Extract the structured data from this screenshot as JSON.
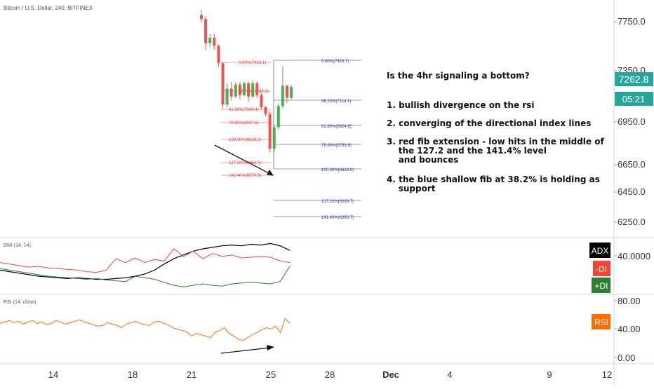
{
  "header": {
    "symbol": "Bitcoin / U.S. Dollar, 240, BITFINEX"
  },
  "price_axis": {
    "ticks": [
      "7750.0",
      "7350.0",
      "6950.0",
      "6650.0",
      "6450.0",
      "6250.0"
    ],
    "current_price": "7262.8",
    "countdown": "05:21",
    "accent_green": "#26a69a"
  },
  "indicators": {
    "dmi": {
      "title": "DMI (14, 14)",
      "axis_tick": "40.0000",
      "labels": [
        "ADX",
        "-DI",
        "+DI"
      ],
      "colors": [
        "#000000",
        "#f44336",
        "#2e7d32"
      ]
    },
    "rsi": {
      "title": "RSI (14, close)",
      "axis_ticks": [
        "80.00",
        "40.00",
        "0.00"
      ],
      "label": "RSI",
      "color": "#ff6d00"
    }
  },
  "time_axis": {
    "ticks": [
      "14",
      "18",
      "21",
      "25",
      "28",
      "Dec",
      "4",
      "9",
      "12"
    ]
  },
  "fib_red": [
    {
      "label": "0.00%(7419.1)"
    },
    {
      "label": "38.20%(7189.9)"
    },
    {
      "label": "61.80%(7048.4)"
    },
    {
      "label": "78.60%(6947.6)"
    },
    {
      "label": "100.00%(6819.2)"
    },
    {
      "label": "127.20%(6656.0)"
    },
    {
      "label": "141.40%(6570.8)"
    }
  ],
  "fib_blue": [
    {
      "label": "0.00%(7420.7)"
    },
    {
      "label": "38.20%(7114.1)"
    },
    {
      "label": "61.80%(6924.6)"
    },
    {
      "label": "78.60%(6789.8)"
    },
    {
      "label": "100.00%(6618.0)"
    },
    {
      "label": "127.20%(6399.7)"
    },
    {
      "label": "141.40%(6285.7)"
    }
  ],
  "annotation": {
    "title": "Is the 4hr signaling a bottom?",
    "points": [
      [
        "1. bullish divergence on the rsi"
      ],
      [
        "2. converging of the directional index lines"
      ],
      [
        "3. red fib extension - low hits in the middle of",
        "    the 127.2 and the 141.4% level",
        "    and bounces"
      ],
      [
        "4. the blue shallow fib at 38.2% is holding as",
        "    support"
      ]
    ]
  },
  "chart_data": {
    "type": "candlestick",
    "title": "Bitcoin / U.S. Dollar, 240, BITFINEX",
    "interval": "240",
    "y_axis_ticks": [
      7750.0,
      7350.0,
      6950.0,
      6650.0,
      6450.0,
      6250.0
    ],
    "x_axis_ticks": [
      "14",
      "18",
      "21",
      "25",
      "28",
      "Dec",
      "4",
      "9",
      "12"
    ],
    "last_price": 7262.8,
    "candles": [
      {
        "o": 7800,
        "h": 7840,
        "l": 7745,
        "c": 7770
      },
      {
        "o": 7770,
        "h": 7790,
        "l": 7540,
        "c": 7590
      },
      {
        "o": 7590,
        "h": 7660,
        "l": 7560,
        "c": 7630
      },
      {
        "o": 7630,
        "h": 7660,
        "l": 7540,
        "c": 7570
      },
      {
        "o": 7570,
        "h": 7580,
        "l": 7410,
        "c": 7440
      },
      {
        "o": 7440,
        "h": 7450,
        "l": 7100,
        "c": 7130
      },
      {
        "o": 7130,
        "h": 7290,
        "l": 7110,
        "c": 7250
      },
      {
        "o": 7250,
        "h": 7300,
        "l": 7160,
        "c": 7190
      },
      {
        "o": 7190,
        "h": 7300,
        "l": 7180,
        "c": 7280
      },
      {
        "o": 7280,
        "h": 7300,
        "l": 7170,
        "c": 7200
      },
      {
        "o": 7200,
        "h": 7300,
        "l": 7190,
        "c": 7290
      },
      {
        "o": 7290,
        "h": 7300,
        "l": 7150,
        "c": 7190
      },
      {
        "o": 7190,
        "h": 7310,
        "l": 7180,
        "c": 7290
      },
      {
        "o": 7290,
        "h": 7300,
        "l": 7180,
        "c": 7200
      },
      {
        "o": 7200,
        "h": 7220,
        "l": 7090,
        "c": 7110
      },
      {
        "o": 7110,
        "h": 7120,
        "l": 7040,
        "c": 7060
      },
      {
        "o": 7060,
        "h": 7080,
        "l": 6770,
        "c": 6800
      },
      {
        "o": 6800,
        "h": 6980,
        "l": 6770,
        "c": 6960
      },
      {
        "o": 6960,
        "h": 7140,
        "l": 6940,
        "c": 7120
      },
      {
        "o": 7120,
        "h": 7420,
        "l": 7100,
        "c": 7270
      },
      {
        "o": 7270,
        "h": 7280,
        "l": 7140,
        "c": 7180
      },
      {
        "o": 7180,
        "h": 7280,
        "l": 7170,
        "c": 7262.8
      }
    ],
    "dmi": {
      "adx": [
        30,
        28,
        26,
        24,
        22,
        21,
        20,
        19,
        20,
        19,
        18,
        18,
        19,
        20,
        22,
        25,
        30,
        38,
        45,
        50,
        55,
        58,
        60,
        62,
        63,
        62,
        64,
        63,
        65,
        62,
        56
      ],
      "minus_di": [
        40,
        38,
        36,
        34,
        35,
        33,
        32,
        31,
        30,
        28,
        27,
        30,
        45,
        40,
        46,
        40,
        44,
        42,
        58,
        48,
        55,
        45,
        52,
        48,
        50,
        46,
        47,
        48,
        47,
        42,
        40
      ],
      "plus_di": [
        32,
        30,
        28,
        26,
        24,
        22,
        21,
        20,
        19,
        18,
        19,
        17,
        16,
        15,
        22,
        20,
        18,
        14,
        10,
        8,
        10,
        12,
        10,
        9,
        12,
        13,
        14,
        13,
        12,
        15,
        35
      ]
    },
    "rsi": [
      48,
      50,
      52,
      49,
      51,
      47,
      50,
      52,
      48,
      50,
      46,
      48,
      52,
      50,
      47,
      49,
      51,
      53,
      50,
      48,
      46,
      44,
      45,
      49,
      47,
      45,
      42,
      47,
      49,
      51,
      48,
      46,
      45,
      50,
      51,
      48,
      46,
      42,
      40,
      38,
      36,
      30,
      34,
      32,
      30,
      28,
      35,
      38,
      42,
      34,
      30,
      26,
      24,
      28,
      32,
      35,
      39,
      42,
      40,
      44,
      35,
      55,
      48
    ]
  }
}
